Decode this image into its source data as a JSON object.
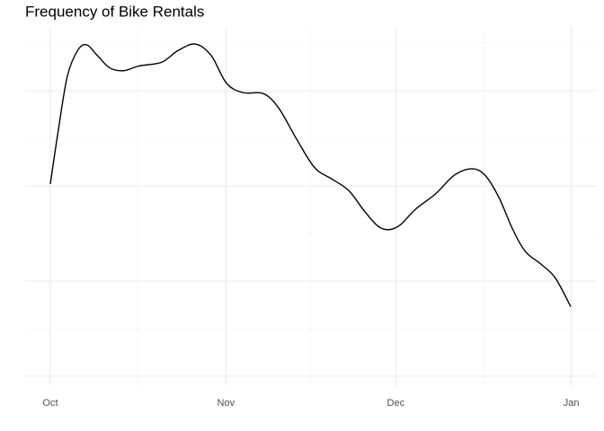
{
  "chart_data": {
    "type": "line",
    "title": "Frequency of Bike Rentals",
    "x": [
      0,
      1.3,
      3,
      4.9,
      6.5,
      8.3,
      10.5,
      12.9,
      15.7,
      19.7,
      22.5,
      25.6,
      28.4,
      31.1,
      34,
      37.6,
      40.3,
      43.5,
      46.7,
      49.8,
      52.7,
      55.4,
      57.8,
      59.7,
      61.8,
      64.4,
      68.1,
      71.3,
      74.4,
      76.8,
      79.2,
      81.6,
      83.9,
      86.8,
      89.2,
      91.9
    ],
    "series": [
      {
        "color": "#000000",
        "values": [
          2.02,
          2.54,
          3.15,
          3.43,
          3.48,
          3.37,
          3.24,
          3.21,
          3.26,
          3.3,
          3.42,
          3.49,
          3.37,
          3.08,
          2.98,
          2.97,
          2.82,
          2.49,
          2.19,
          2.07,
          1.95,
          1.74,
          1.58,
          1.54,
          1.59,
          1.75,
          1.92,
          2.11,
          2.18,
          2.11,
          1.88,
          1.55,
          1.31,
          1.17,
          1.03,
          0.73
        ]
      }
    ],
    "xlim": [
      -4.44,
      96.5
    ],
    "xticks": [
      {
        "value": 0,
        "label": "Oct"
      },
      {
        "value": 31,
        "label": "Nov"
      },
      {
        "value": 61,
        "label": "Dec"
      },
      {
        "value": 92,
        "label": "Jan"
      }
    ],
    "ylim": [
      -0.104,
      3.67
    ],
    "yticks": [
      0,
      1,
      2,
      3
    ],
    "grid": true
  }
}
